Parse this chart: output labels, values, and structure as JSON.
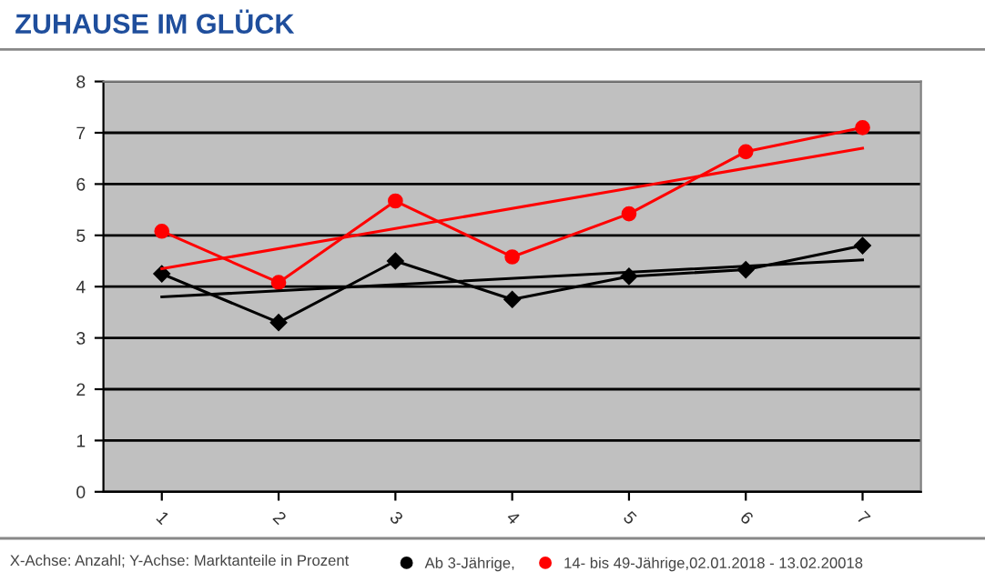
{
  "chart_data": {
    "type": "line",
    "title": "ZUHAUSE IM GLÜCK",
    "categories": [
      "1",
      "2",
      "3",
      "4",
      "5",
      "6",
      "7"
    ],
    "series": [
      {
        "name": "Ab 3-Jährige,",
        "color": "#000000",
        "marker": "diamond",
        "values": [
          4.25,
          3.3,
          4.5,
          3.75,
          4.2,
          4.33,
          4.8
        ]
      },
      {
        "name": "14- bis 49-Jährige,02.01.2018 - 13.02.20018",
        "color": "#ff0000",
        "marker": "circle",
        "values": [
          5.08,
          4.08,
          5.67,
          4.58,
          5.42,
          6.63,
          7.1
        ]
      },
      {
        "type": "line",
        "color": "#000000",
        "marker": "none",
        "x": [
          "1",
          "7"
        ],
        "values": [
          3.8,
          4.52
        ]
      },
      {
        "type": "line",
        "color": "#ff0000",
        "marker": "none",
        "x": [
          "1",
          "7"
        ],
        "values": [
          4.35,
          6.7
        ]
      }
    ],
    "ylim": [
      0,
      8
    ],
    "yticks": [
      0,
      1,
      2,
      3,
      4,
      5,
      6,
      7,
      8
    ],
    "grid": "y",
    "legend": "bottom right",
    "annotations": [
      "X-Achse: Anzahl; Y-Achse: Marktanteile in Prozent"
    ]
  }
}
